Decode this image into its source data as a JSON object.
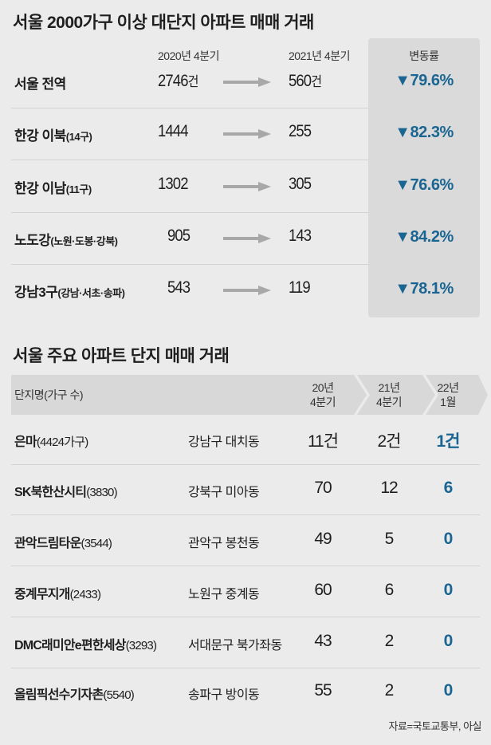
{
  "chart_data": [
    {
      "type": "table",
      "title": "서울 2000가구 이상 대단지 아파트 매매 거래",
      "columns": [
        "",
        "2020년 4분기",
        "2021년 4분기",
        "변동률"
      ],
      "rows": [
        {
          "region": "서울 전역",
          "note": "",
          "q4_2020": "2746",
          "q4_2021": "560",
          "unit": "건",
          "change": "▼79.6%"
        },
        {
          "region": "한강 이북",
          "note": "(14구)",
          "q4_2020": "1444",
          "q4_2021": "255",
          "unit": "",
          "change": "▼82.3%"
        },
        {
          "region": "한강 이남",
          "note": "(11구)",
          "q4_2020": "1302",
          "q4_2021": "305",
          "unit": "",
          "change": "▼76.6%"
        },
        {
          "region": "노도강",
          "note": "(노원·도봉·강북)",
          "q4_2020": "905",
          "q4_2021": "143",
          "unit": "",
          "change": "▼84.2%"
        },
        {
          "region": "강남3구",
          "note": "(강남·서초·송파)",
          "q4_2020": "543",
          "q4_2021": "119",
          "unit": "",
          "change": "▼78.1%"
        }
      ]
    },
    {
      "type": "table",
      "title": "서울 주요 아파트 단지 매매 거래",
      "columns": [
        "단지명(가구 수)",
        "",
        "20년\n4분기",
        "21년\n4분기",
        "22년\n1월"
      ],
      "rows": [
        {
          "name": "은마",
          "households": "(4424가구)",
          "district": "강남구 대치동",
          "v1": "11건",
          "v2": "2건",
          "v3": "1건"
        },
        {
          "name": "SK북한산시티",
          "households": "(3830)",
          "district": "강북구 미아동",
          "v1": "70",
          "v2": "12",
          "v3": "6"
        },
        {
          "name": "관악드림타운",
          "households": "(3544)",
          "district": "관악구 봉천동",
          "v1": "49",
          "v2": "5",
          "v3": "0"
        },
        {
          "name": "중계무지개",
          "households": "(2433)",
          "district": "노원구 중계동",
          "v1": "60",
          "v2": "6",
          "v3": "0"
        },
        {
          "name": "DMC래미안e편한세상",
          "households": "(3293)",
          "district": "서대문구 북가좌동",
          "v1": "43",
          "v2": "2",
          "v3": "0"
        },
        {
          "name": "올림픽선수기자촌",
          "households": "(5540)",
          "district": "송파구 방이동",
          "v1": "55",
          "v2": "2",
          "v3": "0"
        }
      ]
    }
  ],
  "source": "자료=국토교통부, 아실",
  "colors": {
    "accent": "#1a6592",
    "panel": "#dadada",
    "band": "#d9d9d9",
    "arrow": "#a8a8a8"
  }
}
